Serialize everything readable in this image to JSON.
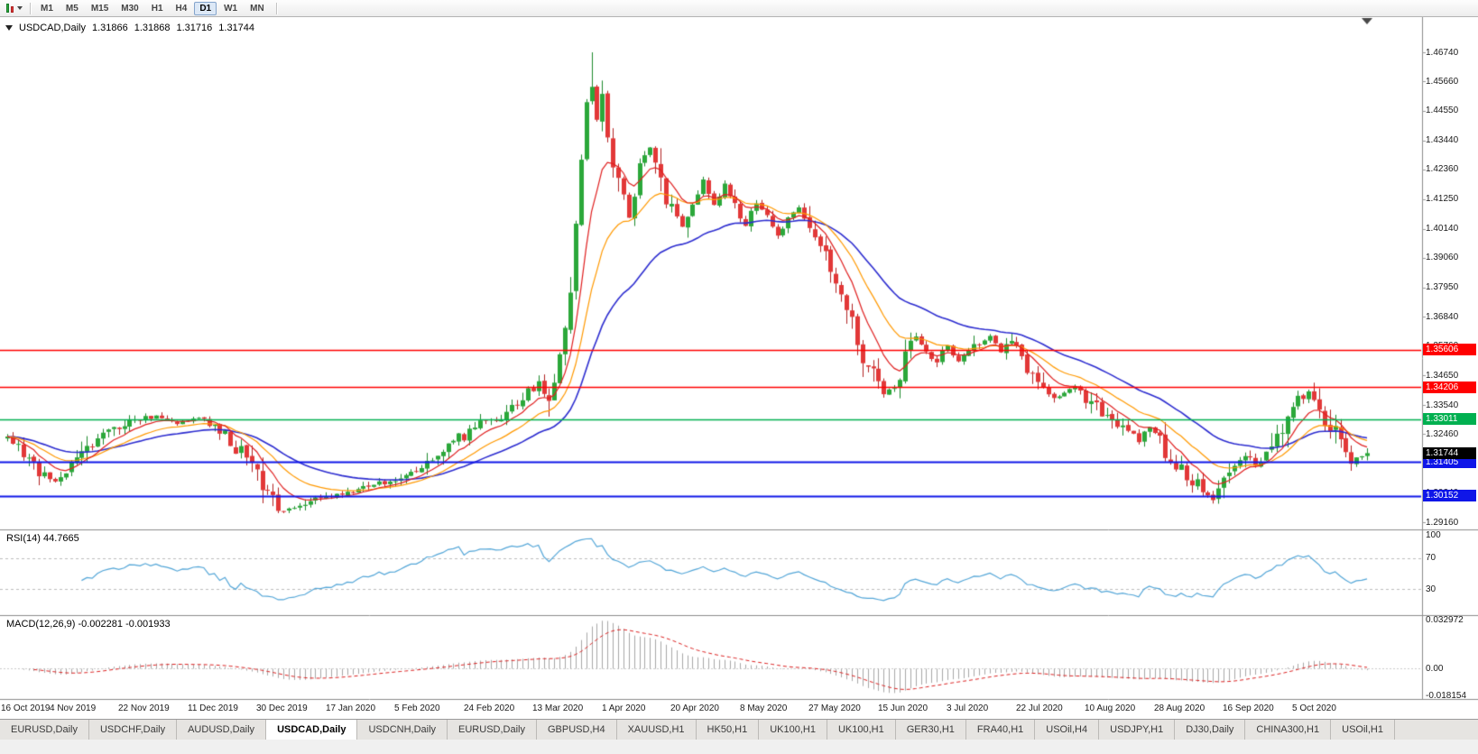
{
  "toolbar": {
    "timeframes": [
      "M1",
      "M5",
      "M15",
      "M30",
      "H1",
      "H4",
      "D1",
      "W1",
      "MN"
    ],
    "active_timeframe": "D1"
  },
  "chart": {
    "symbol_title": "USDCAD,Daily",
    "ohlc": {
      "open": "1.31866",
      "high": "1.31868",
      "low": "1.31716",
      "close": "1.31744"
    }
  },
  "chart_data": {
    "type": "candlestick",
    "symbol": "USDCAD",
    "timeframe": "Daily",
    "bar_count": 257,
    "bars_per_label": 13,
    "x_labels": [
      "16 Oct 2019",
      "4 Nov 2019",
      "22 Nov 2019",
      "11 Dec 2019",
      "30 Dec 2019",
      "17 Jan 2020",
      "5 Feb 2020",
      "24 Feb 2020",
      "13 Mar 2020",
      "1 Apr 2020",
      "20 Apr 2020",
      "8 May 2020",
      "27 May 2020",
      "15 Jun 2020",
      "3 Jul 2020",
      "22 Jul 2020",
      "10 Aug 2020",
      "28 Aug 2020",
      "16 Sep 2020",
      "5 Oct 2020"
    ],
    "price_axis_ticks": [
      "1.46740",
      "1.45660",
      "1.44550",
      "1.43440",
      "1.42360",
      "1.41250",
      "1.40140",
      "1.39060",
      "1.37950",
      "1.36840",
      "1.35760",
      "1.34650",
      "1.33540",
      "1.32460",
      "1.31350",
      "1.30240",
      "1.29160"
    ],
    "price_anchors": [
      [
        0,
        1.323
      ],
      [
        3,
        1.3165
      ],
      [
        6,
        1.311
      ],
      [
        9,
        1.3062
      ],
      [
        12,
        1.3125
      ],
      [
        16,
        1.3205
      ],
      [
        20,
        1.3258
      ],
      [
        24,
        1.3298
      ],
      [
        28,
        1.3312
      ],
      [
        32,
        1.3288
      ],
      [
        36,
        1.3308
      ],
      [
        39,
        1.3282
      ],
      [
        42,
        1.3225
      ],
      [
        45,
        1.3152
      ],
      [
        48,
        1.3062
      ],
      [
        51,
        1.2978
      ],
      [
        53,
        1.2958
      ],
      [
        57,
        1.2992
      ],
      [
        61,
        1.3012
      ],
      [
        65,
        1.3035
      ],
      [
        69,
        1.3058
      ],
      [
        73,
        1.3078
      ],
      [
        77,
        1.3098
      ],
      [
        81,
        1.3158
      ],
      [
        85,
        1.3228
      ],
      [
        89,
        1.3288
      ],
      [
        92,
        1.3306
      ],
      [
        94,
        1.3322
      ],
      [
        97,
        1.3388
      ],
      [
        100,
        1.3428
      ],
      [
        102,
        1.3392
      ],
      [
        104,
        1.3532
      ],
      [
        106,
        1.3772
      ],
      [
        107,
        1.401
      ],
      [
        108,
        1.4282
      ],
      [
        109,
        1.4492
      ],
      [
        110,
        1.456
      ],
      [
        111,
        1.4422
      ],
      [
        112,
        1.4555
      ],
      [
        113,
        1.4378
      ],
      [
        115,
        1.4182
      ],
      [
        117,
        1.4052
      ],
      [
        119,
        1.4232
      ],
      [
        121,
        1.4318
      ],
      [
        123,
        1.4182
      ],
      [
        125,
        1.4082
      ],
      [
        127,
        1.4012
      ],
      [
        129,
        1.4122
      ],
      [
        131,
        1.4192
      ],
      [
        133,
        1.4102
      ],
      [
        135,
        1.4172
      ],
      [
        137,
        1.4102
      ],
      [
        139,
        1.4032
      ],
      [
        141,
        1.4112
      ],
      [
        143,
        1.4062
      ],
      [
        145,
        1.3982
      ],
      [
        147,
        1.4052
      ],
      [
        149,
        1.4098
      ],
      [
        151,
        1.4022
      ],
      [
        153,
        1.3942
      ],
      [
        155,
        1.3872
      ],
      [
        157,
        1.3762
      ],
      [
        159,
        1.3662
      ],
      [
        161,
        1.3542
      ],
      [
        163,
        1.3472
      ],
      [
        165,
        1.3402
      ],
      [
        167,
        1.3432
      ],
      [
        169,
        1.3532
      ],
      [
        171,
        1.3612
      ],
      [
        173,
        1.3552
      ],
      [
        175,
        1.3522
      ],
      [
        177,
        1.3572
      ],
      [
        179,
        1.3522
      ],
      [
        181,
        1.3548
      ],
      [
        183,
        1.3592
      ],
      [
        185,
        1.3612
      ],
      [
        187,
        1.3562
      ],
      [
        189,
        1.3582
      ],
      [
        191,
        1.3532
      ],
      [
        193,
        1.3482
      ],
      [
        195,
        1.3412
      ],
      [
        197,
        1.3372
      ],
      [
        199,
        1.3396
      ],
      [
        201,
        1.3422
      ],
      [
        203,
        1.3376
      ],
      [
        205,
        1.3346
      ],
      [
        207,
        1.3312
      ],
      [
        209,
        1.3292
      ],
      [
        211,
        1.3256
      ],
      [
        213,
        1.3226
      ],
      [
        215,
        1.3262
      ],
      [
        217,
        1.3216
      ],
      [
        219,
        1.3162
      ],
      [
        221,
        1.3106
      ],
      [
        223,
        1.3072
      ],
      [
        225,
        1.3036
      ],
      [
        227,
        1.3008
      ],
      [
        229,
        1.3062
      ],
      [
        231,
        1.3122
      ],
      [
        233,
        1.3156
      ],
      [
        235,
        1.3136
      ],
      [
        237,
        1.3176
      ],
      [
        239,
        1.3226
      ],
      [
        241,
        1.3302
      ],
      [
        243,
        1.3372
      ],
      [
        245,
        1.3402
      ],
      [
        247,
        1.3342
      ],
      [
        249,
        1.3282
      ],
      [
        251,
        1.3212
      ],
      [
        253,
        1.3146
      ],
      [
        255,
        1.3168
      ],
      [
        256,
        1.31744
      ]
    ],
    "candle_up_color": "#2ba83a",
    "candle_down_color": "#e23838",
    "moving_averages": [
      {
        "period": 8,
        "method": "ema",
        "color": "#e02020"
      },
      {
        "period": 17,
        "method": "ema",
        "color": "#ff9900"
      },
      {
        "period": 34,
        "method": "ema",
        "color": "#2d2dd0"
      }
    ],
    "levels": [
      {
        "label": "1.35606",
        "price": 1.35606,
        "color": "#ff0000",
        "width": 1.5
      },
      {
        "label": "1.34206",
        "price": 1.34206,
        "color": "#ff0000",
        "width": 1.5
      },
      {
        "label": "1.33011",
        "price": 1.33011,
        "color": "#00b050",
        "width": 1.5
      },
      {
        "label": "1.31405",
        "price": 1.31405,
        "color": "#0f16e8",
        "width": 2
      },
      {
        "label": "1.30152",
        "price": 1.30152,
        "color": "#0f16e8",
        "width": 2
      }
    ],
    "current_price": {
      "label": "1.31744",
      "value": 1.31744,
      "color": "#000000"
    },
    "rsi": {
      "label": "RSI(14) 44.7665",
      "period": 14,
      "current": 44.7665,
      "dashed_levels": [
        70,
        30
      ],
      "axis_labels": [
        {
          "value": 100,
          "text": "100"
        },
        {
          "value": 70,
          "text": "70"
        },
        {
          "value": 30,
          "text": "30"
        }
      ],
      "color": "#53a6d8"
    },
    "macd": {
      "label": "MACD(12,26,9) -0.002281 -0.001933",
      "fast": 12,
      "slow": 26,
      "signal": 9,
      "main_value": -0.002281,
      "signal_value": -0.001933,
      "axis_max": 0.032972,
      "axis_min": -0.018154,
      "axis_labels": [
        {
          "value": 0.032972,
          "text": "0.032972"
        },
        {
          "value": 0.0,
          "text": "0.00"
        },
        {
          "value": -0.018154,
          "text": "-0.018154"
        }
      ],
      "histogram_color": "#a8a8a8",
      "signal_color": "#dd2222"
    }
  },
  "tabs": {
    "items": [
      {
        "label": "EURUSD,Daily",
        "active": false
      },
      {
        "label": "USDCHF,Daily",
        "active": false
      },
      {
        "label": "AUDUSD,Daily",
        "active": false
      },
      {
        "label": "USDCAD,Daily",
        "active": true
      },
      {
        "label": "USDCNH,Daily",
        "active": false
      },
      {
        "label": "EURUSD,Daily",
        "active": false
      },
      {
        "label": "GBPUSD,H4",
        "active": false
      },
      {
        "label": "XAUUSD,H1",
        "active": false
      },
      {
        "label": "HK50,H1",
        "active": false
      },
      {
        "label": "UK100,H1",
        "active": false
      },
      {
        "label": "UK100,H1",
        "active": false
      },
      {
        "label": "GER30,H1",
        "active": false
      },
      {
        "label": "FRA40,H1",
        "active": false
      },
      {
        "label": "USOil,H4",
        "active": false
      },
      {
        "label": "USDJPY,H1",
        "active": false
      },
      {
        "label": "DJ30,Daily",
        "active": false
      },
      {
        "label": "CHINA300,H1",
        "active": false
      },
      {
        "label": "USOil,H1",
        "active": false
      }
    ]
  }
}
